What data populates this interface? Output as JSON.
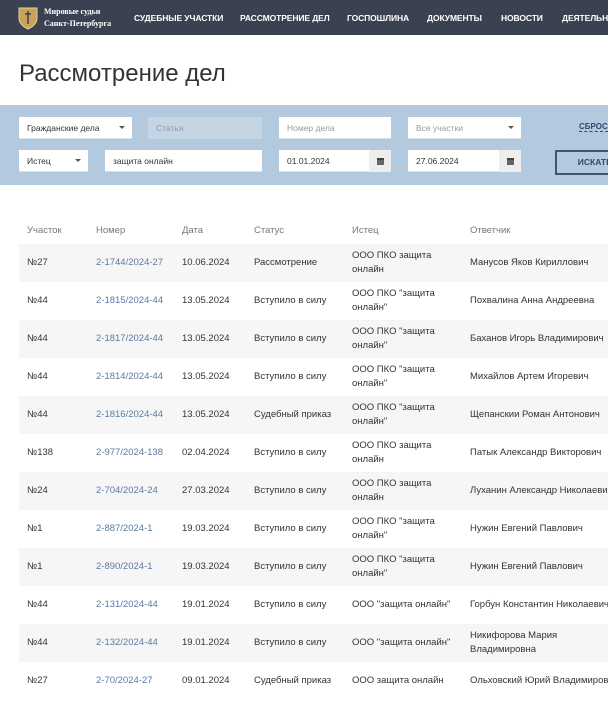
{
  "header": {
    "brand_line1": "Мировые судьи",
    "brand_line2": "Санкт-Петербурга",
    "nav": [
      "СУДЕБНЫЕ УЧАСТКИ",
      "РАССМОТРЕНИЕ ДЕЛ",
      "ГОСПОШЛИНА",
      "ДОКУМЕНТЫ",
      "НОВОСТИ",
      "ДЕЯТЕЛЬНОСТЬ"
    ]
  },
  "page_title": "Рассмотрение дел",
  "filters": {
    "case_type": "Гражданские дела",
    "article_placeholder": "Статья",
    "case_number_placeholder": "Номер дела",
    "district": "Все участки",
    "party_role": "Истец",
    "party_name": "защита онлайн",
    "date_from": "01.01.2024",
    "date_to": "27.06.2024",
    "reset_label": "СБРОСИТЬ",
    "search_label": "ИСКАТЬ"
  },
  "table": {
    "columns": [
      "Участок",
      "Номер",
      "Дата",
      "Статус",
      "Истец",
      "Ответчик"
    ],
    "rows": [
      [
        "№27",
        "2-1744/2024-27",
        "10.06.2024",
        "Рассмотрение",
        "ООО ПКО защита онлайн",
        "Манусов Яков Кириллович"
      ],
      [
        "№44",
        "2-1815/2024-44",
        "13.05.2024",
        "Вступило в силу",
        "ООО ПКО \"защита онлайн\"",
        "Похвалина Анна Андреевна"
      ],
      [
        "№44",
        "2-1817/2024-44",
        "13.05.2024",
        "Вступило в силу",
        "ООО ПКО \"защита онлайн\"",
        "Баханов Игорь Владимирович"
      ],
      [
        "№44",
        "2-1814/2024-44",
        "13.05.2024",
        "Вступило в силу",
        "ООО ПКО \"защита онлайн\"",
        "Михайлов Артем Игоревич"
      ],
      [
        "№44",
        "2-1816/2024-44",
        "13.05.2024",
        "Судебный приказ",
        "ООО ПКО \"защита онлайн\"",
        "Щепанскии Роман Антонович"
      ],
      [
        "№138",
        "2-977/2024-138",
        "02.04.2024",
        "Вступило в силу",
        "ООО ПКО защита онлайн",
        "Патык Александр Викторович"
      ],
      [
        "№24",
        "2-704/2024-24",
        "27.03.2024",
        "Вступило в силу",
        "ООО ПКО защита онлайн",
        "Луханин Александр Николаевич"
      ],
      [
        "№1",
        "2-887/2024-1",
        "19.03.2024",
        "Вступило в силу",
        "ООО ПКО \"защита онлайн\"",
        "Нужин Евгений Павлович"
      ],
      [
        "№1",
        "2-890/2024-1",
        "19.03.2024",
        "Вступило в силу",
        "ООО ПКО \"защита онлайн\"",
        "Нужин Евгений Павлович"
      ],
      [
        "№44",
        "2-131/2024-44",
        "19.01.2024",
        "Вступило в силу",
        "ООО \"защита онлайн\"",
        "Горбун Константин Николаевич"
      ],
      [
        "№44",
        "2-132/2024-44",
        "19.01.2024",
        "Вступило в силу",
        "ООО \"защита онлайн\"",
        "Никифорова Мария Владимировна"
      ],
      [
        "№27",
        "2-70/2024-27",
        "09.01.2024",
        "Судебный приказ",
        "ООО защита онлайн",
        "Ольховский Юрий Владимирович"
      ]
    ]
  },
  "colors": {
    "header_bg": "#3a4150",
    "filter_bg": "#b3c9de",
    "link": "#5a7aa0"
  }
}
